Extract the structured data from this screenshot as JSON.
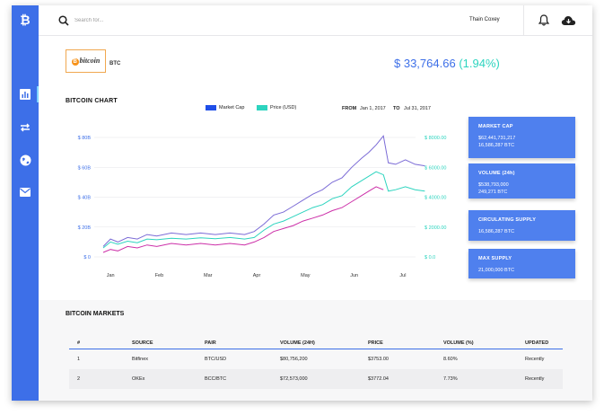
{
  "sidebar": {
    "logo_icon": "bitcoin-logo-icon",
    "items": [
      {
        "icon": "bar-chart-icon",
        "active": true
      },
      {
        "icon": "swap-arrows-icon",
        "active": false
      },
      {
        "icon": "globe-icon",
        "active": false
      },
      {
        "icon": "mail-icon",
        "active": false
      }
    ]
  },
  "header": {
    "search_placeholder": "Search for...",
    "user_name": "Thain Coxey"
  },
  "coin": {
    "logo_text": "bitcoin",
    "logo_mark": "B",
    "ticker": "BTC",
    "price": "$ 33,764.66",
    "change": "(1.94%)"
  },
  "chart_section": {
    "title": "BITCOIN CHART",
    "from_label": "FROM",
    "from_date": "Jan 1, 2017",
    "to_label": "TO",
    "to_date": "Jul 31, 2017"
  },
  "chart_data": {
    "type": "line",
    "title": "BITCOIN CHART",
    "x": [
      "Jan",
      "Feb",
      "Mar",
      "Apr",
      "May",
      "Jun",
      "Jul"
    ],
    "x_range": [
      0,
      7
    ],
    "left_axis": {
      "ticks": [
        "$ 0",
        "$ 20B",
        "$ 40B",
        "$ 60B",
        "$ 80B"
      ],
      "range": [
        0,
        80
      ]
    },
    "right_axis": {
      "ticks": [
        "$ 0.0",
        "$ 2000.00",
        "$ 4000.00",
        "$ 6000.00",
        "$ 8000.00"
      ],
      "range": [
        0,
        8000
      ]
    },
    "legend_position": "top-center",
    "grid": true,
    "series": [
      {
        "name": "Market Cap",
        "color": "#7b6bd6",
        "axis": "left",
        "points": [
          [
            0,
            7
          ],
          [
            0.15,
            12
          ],
          [
            0.3,
            10
          ],
          [
            0.5,
            13
          ],
          [
            0.7,
            12
          ],
          [
            0.9,
            15
          ],
          [
            1.1,
            14
          ],
          [
            1.4,
            16
          ],
          [
            1.7,
            15
          ],
          [
            2,
            16
          ],
          [
            2.3,
            15
          ],
          [
            2.6,
            16
          ],
          [
            2.9,
            15
          ],
          [
            3.1,
            17
          ],
          [
            3.3,
            22
          ],
          [
            3.5,
            28
          ],
          [
            3.7,
            30
          ],
          [
            3.9,
            34
          ],
          [
            4.1,
            38
          ],
          [
            4.3,
            42
          ],
          [
            4.5,
            45
          ],
          [
            4.7,
            50
          ],
          [
            4.9,
            53
          ],
          [
            5.1,
            60
          ],
          [
            5.3,
            66
          ],
          [
            5.45,
            70
          ],
          [
            5.6,
            75
          ],
          [
            5.75,
            81
          ],
          [
            5.85,
            63
          ],
          [
            6.0,
            62
          ],
          [
            6.2,
            65
          ],
          [
            6.4,
            62
          ],
          [
            6.6,
            61
          ]
        ]
      },
      {
        "name": "Price (USD)",
        "color": "#2dd4bf",
        "axis": "right",
        "points": [
          [
            0,
            600
          ],
          [
            0.15,
            1000
          ],
          [
            0.3,
            850
          ],
          [
            0.5,
            1050
          ],
          [
            0.7,
            950
          ],
          [
            0.9,
            1200
          ],
          [
            1.1,
            1150
          ],
          [
            1.4,
            1250
          ],
          [
            1.7,
            1200
          ],
          [
            2,
            1280
          ],
          [
            2.3,
            1220
          ],
          [
            2.6,
            1300
          ],
          [
            2.9,
            1200
          ],
          [
            3.1,
            1300
          ],
          [
            3.3,
            1800
          ],
          [
            3.5,
            2200
          ],
          [
            3.7,
            2400
          ],
          [
            3.9,
            2700
          ],
          [
            4.1,
            3000
          ],
          [
            4.3,
            3300
          ],
          [
            4.5,
            3500
          ],
          [
            4.7,
            3900
          ],
          [
            4.9,
            4100
          ],
          [
            5.1,
            4700
          ],
          [
            5.3,
            5100
          ],
          [
            5.45,
            5400
          ],
          [
            5.6,
            5700
          ],
          [
            5.75,
            5500
          ],
          [
            5.85,
            4400
          ],
          [
            6.0,
            4500
          ],
          [
            6.2,
            4700
          ],
          [
            6.4,
            4500
          ],
          [
            6.6,
            4400
          ]
        ]
      },
      {
        "name": "",
        "color": "#cc2fa8",
        "axis": "left",
        "points": [
          [
            0,
            3
          ],
          [
            0.15,
            5
          ],
          [
            0.3,
            4
          ],
          [
            0.5,
            7
          ],
          [
            0.7,
            6
          ],
          [
            0.9,
            8
          ],
          [
            1.1,
            7
          ],
          [
            1.4,
            9
          ],
          [
            1.7,
            8
          ],
          [
            2,
            9
          ],
          [
            2.3,
            8
          ],
          [
            2.6,
            9
          ],
          [
            2.9,
            8
          ],
          [
            3.1,
            10
          ],
          [
            3.3,
            13
          ],
          [
            3.5,
            17
          ],
          [
            3.7,
            19
          ],
          [
            3.9,
            21
          ],
          [
            4.1,
            24
          ],
          [
            4.3,
            26
          ],
          [
            4.5,
            28
          ],
          [
            4.7,
            31
          ],
          [
            4.9,
            33
          ],
          [
            5.1,
            37
          ],
          [
            5.3,
            41
          ],
          [
            5.45,
            44
          ],
          [
            5.6,
            47
          ],
          [
            5.75,
            45
          ]
        ]
      }
    ]
  },
  "legend": [
    {
      "label": "Market Cap",
      "color": "#1f4ee8"
    },
    {
      "label": "Price (USD)",
      "color": "#2dd4bf"
    }
  ],
  "stats": [
    {
      "label": "MARKET CAP",
      "lines": [
        "$62,441,731,217",
        "16,586,287 BTC"
      ]
    },
    {
      "label": "VOLUME (24h)",
      "lines": [
        "$538,793,000",
        "249,271 BTC"
      ]
    },
    {
      "label": "CIRCULATING SUPPLY",
      "lines": [
        "16,586,287 BTC"
      ]
    },
    {
      "label": "MAX SUPPLY",
      "lines": [
        "21,000,000 BTC"
      ]
    }
  ],
  "markets": {
    "title": "BITCOIN MARKETS",
    "columns": [
      "#",
      "SOURCE",
      "PAIR",
      "VOLUME (24H)",
      "PRICE",
      "VOLUME (%)",
      "UPDATED"
    ],
    "rows": [
      [
        "1",
        "Bitfinex",
        "BTC/USD",
        "$80,756,200",
        "$3753.00",
        "8.60%",
        "Recently"
      ],
      [
        "2",
        "OKEx",
        "BCC/BTC",
        "$72,573,000",
        "$3772.04",
        "7.73%",
        "Recently"
      ]
    ]
  }
}
